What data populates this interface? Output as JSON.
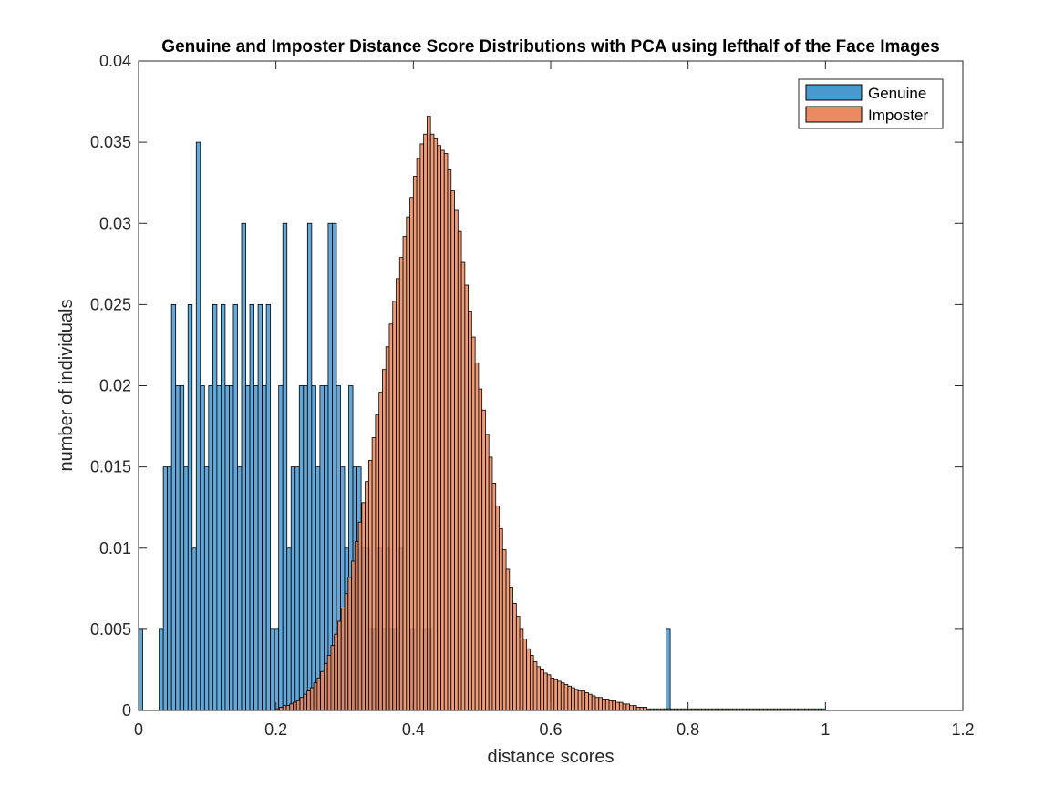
{
  "chart_data": {
    "type": "bar",
    "title": "Genuine and Imposter Distance Score Distributions with PCA using lefthalf of the Face Images",
    "xlabel": "distance scores",
    "ylabel": "number of individuals",
    "xlim": [
      0,
      1.2
    ],
    "ylim": [
      0,
      0.04
    ],
    "xticks": [
      0,
      0.2,
      0.4,
      0.6,
      0.8,
      1,
      1.2
    ],
    "xtick_labels": [
      "0",
      "0.2",
      "0.4",
      "0.6",
      "0.8",
      "1",
      "1.2"
    ],
    "yticks": [
      0,
      0.005,
      0.01,
      0.015,
      0.02,
      0.025,
      0.03,
      0.035,
      0.04
    ],
    "ytick_labels": [
      "0",
      "0.005",
      "0.01",
      "0.015",
      "0.02",
      "0.025",
      "0.03",
      "0.035",
      "0.04"
    ],
    "grid": false,
    "legend_position": "top-right",
    "series": [
      {
        "name": "Genuine",
        "color": "#4a98d0",
        "opacity": 0.85,
        "bin_start": 0,
        "bin_width": 0.006,
        "values": [
          0.005,
          0,
          0,
          0,
          0,
          0.005,
          0.015,
          0.015,
          0.025,
          0.02,
          0.02,
          0.015,
          0.025,
          0.01,
          0.035,
          0.02,
          0.015,
          0.02,
          0.025,
          0.02,
          0.025,
          0.02,
          0.02,
          0.025,
          0.015,
          0.03,
          0.02,
          0.025,
          0.02,
          0.025,
          0.02,
          0.025,
          0.005,
          0.005,
          0.02,
          0.03,
          0.01,
          0.015,
          0.015,
          0.02,
          0.02,
          0.03,
          0.02,
          0.015,
          0.02,
          0.02,
          0.03,
          0.03,
          0.02,
          0.015,
          0.01,
          0.02,
          0.015,
          0.015,
          0.01,
          0.01,
          0.005,
          0.005,
          0.01,
          0.005,
          0.01,
          0.005,
          0.005,
          0.01,
          0,
          0,
          0.005,
          0,
          0,
          0.005,
          0.005,
          0,
          0,
          0,
          0,
          0,
          0,
          0,
          0,
          0,
          0,
          0,
          0,
          0,
          0,
          0,
          0,
          0,
          0,
          0,
          0,
          0,
          0,
          0,
          0,
          0,
          0,
          0,
          0,
          0,
          0,
          0,
          0,
          0,
          0,
          0,
          0,
          0,
          0,
          0,
          0,
          0,
          0,
          0,
          0,
          0,
          0,
          0,
          0,
          0,
          0,
          0,
          0,
          0,
          0,
          0,
          0,
          0,
          0.005
        ]
      },
      {
        "name": "Imposter",
        "color": "#eb8963",
        "opacity": 0.85,
        "bin_start": 0.2,
        "bin_width": 0.005,
        "values": [
          0.0001,
          0.0002,
          0.0003,
          0.0003,
          0.0004,
          0.0005,
          0.0006,
          0.0008,
          0.001,
          0.0012,
          0.0014,
          0.0017,
          0.002,
          0.0024,
          0.0029,
          0.0034,
          0.004,
          0.0047,
          0.0055,
          0.0063,
          0.0072,
          0.0082,
          0.0092,
          0.0104,
          0.0116,
          0.0128,
          0.0141,
          0.0154,
          0.0168,
          0.0182,
          0.0196,
          0.021,
          0.0224,
          0.0238,
          0.0252,
          0.0266,
          0.0279,
          0.0292,
          0.0304,
          0.0316,
          0.0329,
          0.034,
          0.0349,
          0.0355,
          0.0366,
          0.0355,
          0.0352,
          0.0348,
          0.0345,
          0.0343,
          0.0333,
          0.032,
          0.0308,
          0.0295,
          0.0276,
          0.0262,
          0.0246,
          0.023,
          0.0214,
          0.0198,
          0.0185,
          0.017,
          0.0156,
          0.014,
          0.0126,
          0.0112,
          0.0099,
          0.0087,
          0.0076,
          0.0066,
          0.0058,
          0.005,
          0.0044,
          0.0038,
          0.0034,
          0.003,
          0.0027,
          0.0025,
          0.0023,
          0.0022,
          0.002,
          0.0019,
          0.0018,
          0.0017,
          0.0016,
          0.0015,
          0.0014,
          0.0013,
          0.0012,
          0.0012,
          0.0011,
          0.001,
          0.0009,
          0.0008,
          0.0008,
          0.0007,
          0.0007,
          0.0006,
          0.0006,
          0.0005,
          0.0005,
          0.0004,
          0.0004,
          0.0003,
          0.0003,
          0.0002,
          0.0002,
          0.0002,
          0.0001,
          0.0001,
          0.0001,
          0.0001,
          0.0001,
          0.0001,
          0.0001,
          0.0001,
          0.0001,
          0.0001,
          0.0001,
          0.0001,
          0.0001,
          0.0001,
          0.0001,
          0.0001,
          0.0001,
          0.0001,
          0.0001,
          0.0001,
          0.0001,
          0.0001,
          0.0001,
          0.0001,
          0.0001,
          0.0001,
          0.0001,
          0.0001,
          0.0001,
          0.0001,
          0.0001,
          0.0001,
          0.0001,
          0.0001,
          0.0001,
          0.0001,
          0.0001,
          0.0001,
          0.0001,
          0.0001,
          0.0001,
          0.0001,
          0.0001,
          0.0001,
          0.0001,
          0.0001,
          0.0001,
          0.0001,
          0.0001,
          0.0001,
          0.0001,
          0.0001
        ]
      }
    ]
  }
}
